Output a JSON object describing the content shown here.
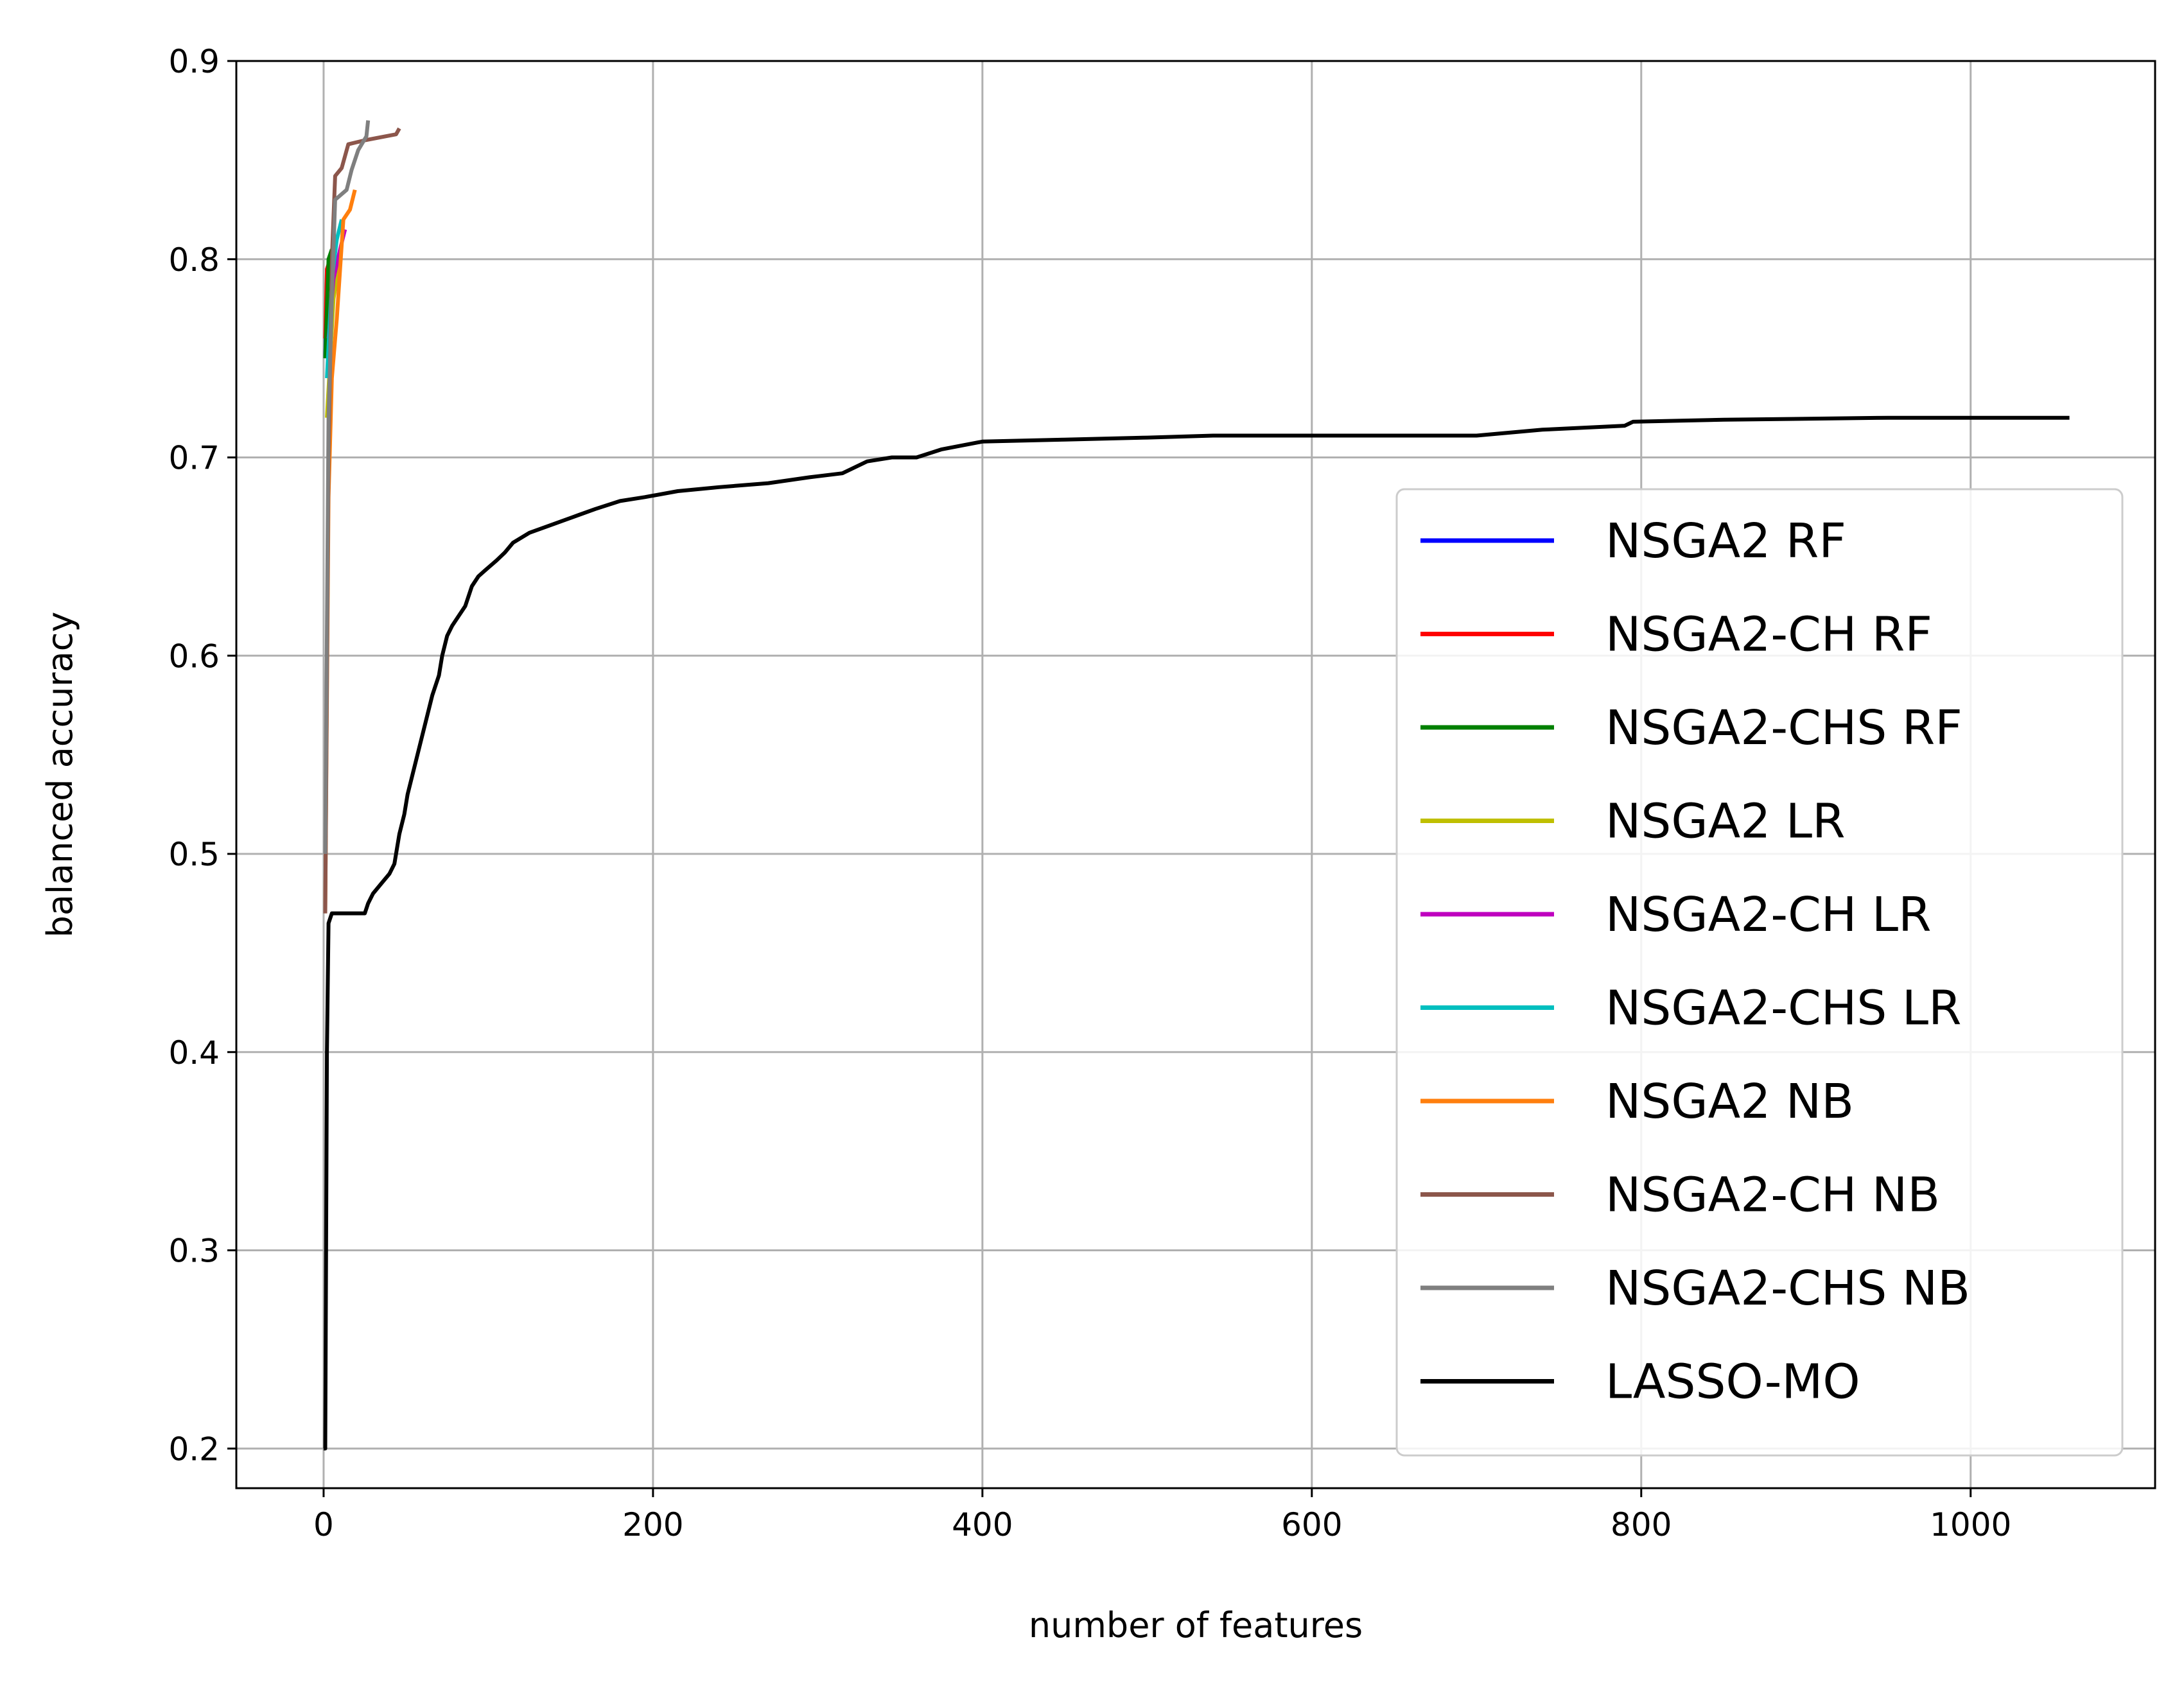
{
  "chart_data": {
    "type": "line",
    "title": "",
    "xlabel": "number of features",
    "ylabel": "balanced accuracy",
    "xlim": [
      -53,
      1112
    ],
    "ylim": [
      0.18,
      0.9
    ],
    "xticks": [
      0,
      200,
      400,
      600,
      800,
      1000
    ],
    "yticks": [
      0.2,
      0.3,
      0.4,
      0.5,
      0.6,
      0.7,
      0.8,
      0.9
    ],
    "xtick_labels": [
      "0",
      "200",
      "400",
      "600",
      "800",
      "1000"
    ],
    "ytick_labels": [
      "0.2",
      "0.3",
      "0.4",
      "0.5",
      "0.6",
      "0.7",
      "0.8",
      "0.9"
    ],
    "grid": true,
    "legend_position": "lower-right",
    "series": [
      {
        "name": "NSGA2 RF",
        "color": "#0000ff",
        "points": [
          [
            1,
            0.75
          ],
          [
            2,
            0.79
          ],
          [
            3,
            0.795
          ]
        ]
      },
      {
        "name": "NSGA2-CH RF",
        "color": "#ff0000",
        "points": [
          [
            1,
            0.76
          ],
          [
            2,
            0.795
          ],
          [
            4,
            0.8
          ]
        ]
      },
      {
        "name": "NSGA2-CHS RF",
        "color": "#008000",
        "points": [
          [
            1,
            0.75
          ],
          [
            3,
            0.8
          ],
          [
            5,
            0.805
          ]
        ]
      },
      {
        "name": "NSGA2 LR",
        "color": "#bfbf00",
        "points": [
          [
            2,
            0.72
          ],
          [
            6,
            0.78
          ],
          [
            10,
            0.8
          ]
        ]
      },
      {
        "name": "NSGA2-CH LR",
        "color": "#bf00bf",
        "points": [
          [
            3,
            0.76
          ],
          [
            6,
            0.79
          ],
          [
            10,
            0.805
          ],
          [
            13,
            0.815
          ]
        ]
      },
      {
        "name": "NSGA2-CHS LR",
        "color": "#00bfbf",
        "points": [
          [
            2,
            0.74
          ],
          [
            5,
            0.79
          ],
          [
            8,
            0.81
          ],
          [
            11,
            0.82
          ]
        ]
      },
      {
        "name": "NSGA2 NB",
        "color": "#ff7f0e",
        "points": [
          [
            1,
            0.47
          ],
          [
            3,
            0.68
          ],
          [
            5,
            0.74
          ],
          [
            8,
            0.77
          ],
          [
            10,
            0.795
          ],
          [
            12,
            0.82
          ],
          [
            16,
            0.825
          ],
          [
            19,
            0.835
          ]
        ]
      },
      {
        "name": "NSGA2-CH NB",
        "color": "#8c564b",
        "points": [
          [
            1,
            0.47
          ],
          [
            3,
            0.7
          ],
          [
            5,
            0.8
          ],
          [
            7,
            0.842
          ],
          [
            11,
            0.846
          ],
          [
            15,
            0.858
          ],
          [
            25,
            0.86
          ],
          [
            44,
            0.863
          ],
          [
            46,
            0.866
          ]
        ]
      },
      {
        "name": "NSGA2-CHS NB",
        "color": "#7f7f7f",
        "points": [
          [
            1,
            0.5
          ],
          [
            3,
            0.72
          ],
          [
            5,
            0.78
          ],
          [
            7,
            0.83
          ],
          [
            14,
            0.835
          ],
          [
            17,
            0.845
          ],
          [
            21,
            0.855
          ],
          [
            26,
            0.862
          ],
          [
            27,
            0.87
          ]
        ]
      },
      {
        "name": "LASSO-MO",
        "color": "#000000",
        "points": [
          [
            0,
            0.2
          ],
          [
            1,
            0.2
          ],
          [
            2,
            0.4
          ],
          [
            3,
            0.465
          ],
          [
            5,
            0.47
          ],
          [
            25,
            0.47
          ],
          [
            27,
            0.475
          ],
          [
            30,
            0.48
          ],
          [
            35,
            0.485
          ],
          [
            40,
            0.49
          ],
          [
            43,
            0.495
          ],
          [
            46,
            0.51
          ],
          [
            49,
            0.52
          ],
          [
            51,
            0.53
          ],
          [
            54,
            0.54
          ],
          [
            57,
            0.55
          ],
          [
            60,
            0.56
          ],
          [
            63,
            0.57
          ],
          [
            66,
            0.58
          ],
          [
            70,
            0.59
          ],
          [
            72,
            0.6
          ],
          [
            75,
            0.61
          ],
          [
            78,
            0.615
          ],
          [
            82,
            0.62
          ],
          [
            86,
            0.625
          ],
          [
            90,
            0.635
          ],
          [
            94,
            0.64
          ],
          [
            98,
            0.643
          ],
          [
            105,
            0.648
          ],
          [
            110,
            0.652
          ],
          [
            115,
            0.657
          ],
          [
            125,
            0.662
          ],
          [
            135,
            0.665
          ],
          [
            145,
            0.668
          ],
          [
            155,
            0.671
          ],
          [
            165,
            0.674
          ],
          [
            180,
            0.678
          ],
          [
            195,
            0.68
          ],
          [
            215,
            0.683
          ],
          [
            240,
            0.685
          ],
          [
            270,
            0.687
          ],
          [
            295,
            0.69
          ],
          [
            315,
            0.692
          ],
          [
            330,
            0.698
          ],
          [
            345,
            0.7
          ],
          [
            360,
            0.7
          ],
          [
            375,
            0.704
          ],
          [
            400,
            0.708
          ],
          [
            450,
            0.709
          ],
          [
            500,
            0.71
          ],
          [
            540,
            0.711
          ],
          [
            600,
            0.711
          ],
          [
            700,
            0.711
          ],
          [
            740,
            0.714
          ],
          [
            790,
            0.716
          ],
          [
            795,
            0.718
          ],
          [
            850,
            0.719
          ],
          [
            950,
            0.72
          ],
          [
            1060,
            0.72
          ]
        ]
      }
    ]
  }
}
